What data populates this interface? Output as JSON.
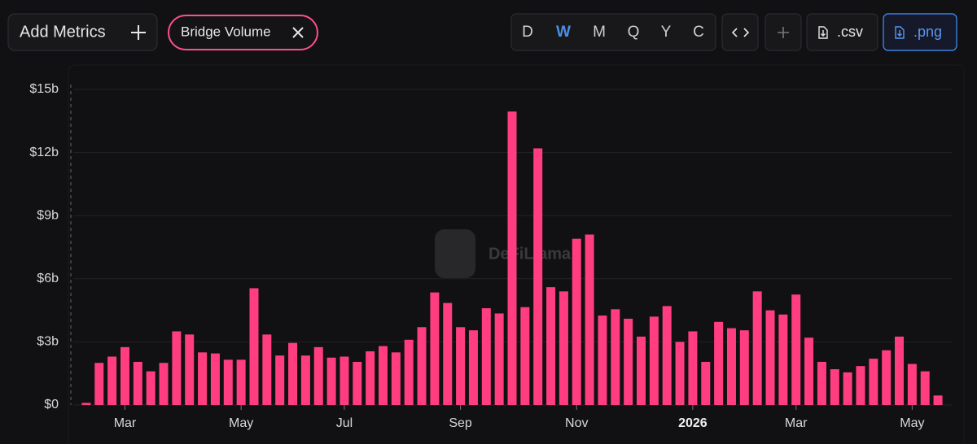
{
  "toolbar": {
    "add_metrics": "Add Metrics",
    "intervals": [
      "D",
      "W",
      "M",
      "Q",
      "Y",
      "C"
    ],
    "active_interval": 1,
    "csv": ".csv",
    "png": ".png"
  },
  "watermark": "DeFiLlama",
  "chart_data": {
    "type": "bar",
    "categories": [
      null,
      null,
      null,
      "Mar",
      null,
      null,
      null,
      null,
      null,
      null,
      null,
      null,
      "May",
      null,
      null,
      null,
      null,
      null,
      null,
      null,
      "Jul",
      null,
      null,
      null,
      null,
      null,
      null,
      null,
      null,
      "Sep",
      null,
      null,
      null,
      null,
      null,
      null,
      null,
      null,
      "Nov",
      null,
      null,
      null,
      null,
      null,
      null,
      null,
      null,
      "2026",
      null,
      null,
      null,
      null,
      null,
      null,
      null,
      "Mar",
      null,
      null,
      null,
      null,
      null,
      null,
      null,
      null,
      "May",
      null,
      null
    ],
    "series": [
      {
        "name": "Bridge Volume",
        "color": "#ff3d7f",
        "values": [
          0.1,
          2.0,
          2.3,
          2.75,
          2.05,
          1.6,
          2.0,
          3.5,
          3.35,
          2.5,
          2.45,
          2.15,
          2.15,
          5.55,
          3.35,
          2.35,
          2.95,
          2.35,
          2.75,
          2.25,
          2.3,
          2.05,
          2.55,
          2.8,
          2.5,
          3.1,
          3.7,
          5.35,
          4.85,
          3.7,
          3.55,
          4.6,
          4.35,
          13.95,
          4.65,
          12.2,
          5.6,
          5.4,
          7.9,
          8.1,
          4.25,
          4.55,
          4.1,
          3.25,
          4.2,
          4.7,
          3.0,
          3.5,
          2.05,
          3.95,
          3.65,
          3.55,
          5.4,
          4.5,
          4.3,
          5.25,
          3.2,
          2.05,
          1.7,
          1.55,
          1.85,
          2.2,
          2.6,
          3.25,
          1.95,
          1.6,
          0.45
        ]
      }
    ],
    "ylim": [
      0,
      15
    ],
    "yticks": [
      {
        "value": 0,
        "label": "$0"
      },
      {
        "value": 3,
        "label": "$3b"
      },
      {
        "value": 6,
        "label": "$6b"
      },
      {
        "value": 9,
        "label": "$9b"
      },
      {
        "value": 12,
        "label": "$12b"
      },
      {
        "value": 15,
        "label": "$15b"
      }
    ],
    "grid": true
  }
}
